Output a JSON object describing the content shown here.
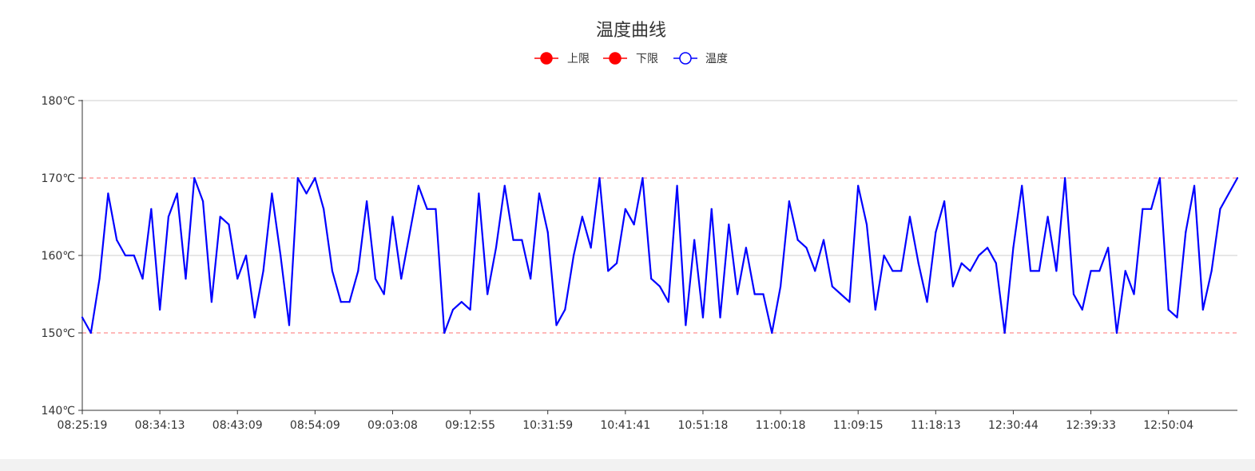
{
  "chart_data": {
    "type": "line",
    "title": "温度曲线",
    "xlabel": "",
    "ylabel": "",
    "ylim": [
      140,
      180
    ],
    "yticks": [
      "140℃",
      "150℃",
      "160℃",
      "170℃",
      "180℃"
    ],
    "y_tick_values": [
      140,
      150,
      160,
      170,
      180
    ],
    "xtick_labels": [
      "08:25:19",
      "08:34:13",
      "08:43:09",
      "08:54:09",
      "09:03:08",
      "09:12:55",
      "10:31:59",
      "10:41:41",
      "10:51:18",
      "11:00:18",
      "11:09:15",
      "11:18:13",
      "12:30:44",
      "12:39:33",
      "12:50:04"
    ],
    "xtick_every": 9,
    "grid": true,
    "legend_position": "top-center",
    "legend": [
      {
        "name": "上限",
        "color": "#ff0000",
        "marker": "filled-circle"
      },
      {
        "name": "下限",
        "color": "#ff0000",
        "marker": "filled-circle"
      },
      {
        "name": "温度",
        "color": "#0000ff",
        "marker": "hollow-circle"
      }
    ],
    "upper_limit": 170,
    "lower_limit": 150,
    "colors": {
      "temperature": "#0000ff",
      "limits": "#ff0000",
      "grid": "#cccccc",
      "axis": "#333333"
    },
    "series": [
      {
        "name": "温度",
        "values": [
          152,
          150,
          157,
          168,
          162,
          160,
          160,
          157,
          166,
          153,
          165,
          168,
          157,
          170,
          167,
          154,
          165,
          164,
          157,
          160,
          152,
          158,
          168,
          160,
          151,
          170,
          168,
          170,
          166,
          158,
          154,
          154,
          158,
          167,
          157,
          155,
          165,
          157,
          163,
          169,
          166,
          166,
          150,
          153,
          154,
          153,
          168,
          155,
          161,
          169,
          162,
          162,
          157,
          168,
          163,
          151,
          153,
          160,
          165,
          161,
          170,
          158,
          159,
          166,
          164,
          170,
          157,
          156,
          154,
          169,
          151,
          162,
          152,
          166,
          152,
          164,
          155,
          161,
          155,
          155,
          150,
          156,
          167,
          162,
          161,
          158,
          162,
          156,
          155,
          154,
          169,
          164,
          153,
          160,
          158,
          158,
          165,
          159,
          154,
          163,
          167,
          156,
          159,
          158,
          160,
          161,
          159,
          150,
          161,
          169,
          158,
          158,
          165,
          158,
          170,
          155,
          153,
          158,
          158,
          161,
          150,
          158,
          155,
          166,
          166,
          170,
          153,
          152,
          163,
          169,
          153,
          158,
          166,
          168,
          170
        ]
      }
    ]
  }
}
